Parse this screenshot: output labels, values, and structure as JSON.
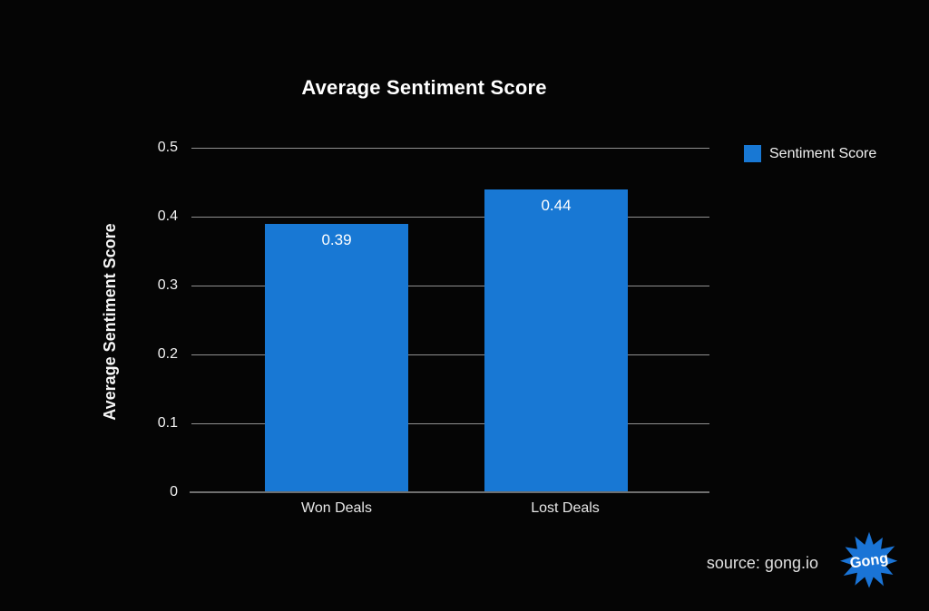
{
  "chart": {
    "title": "Average Sentiment Score",
    "y_axis_title": "Average Sentiment Score",
    "legend": {
      "label": "Sentiment Score"
    },
    "source_text": "source: gong.io",
    "logo_text": "Gong",
    "colors": {
      "bar": "#1878d4",
      "legend_swatch": "#1878d4",
      "gridline": "#909090",
      "axis_line": "#6f6f6f",
      "logo_fill": "#1a74d6",
      "background": "#050505"
    }
  },
  "chart_data": {
    "type": "bar",
    "title": "Average Sentiment Score",
    "categories": [
      "Won Deals",
      "Lost Deals"
    ],
    "series": [
      {
        "name": "Sentiment Score",
        "values": [
          0.39,
          0.44
        ]
      }
    ],
    "value_labels": [
      "0.39",
      "0.44"
    ],
    "xlabel": "",
    "ylabel": "Average Sentiment Score",
    "ylim": [
      0,
      0.5
    ],
    "yticks": [
      0,
      0.1,
      0.2,
      0.3,
      0.4,
      0.5
    ],
    "ytick_labels": [
      "0",
      "0.1",
      "0.2",
      "0.3",
      "0.4",
      "0.5"
    ],
    "grid": true,
    "legend_position": "upper right",
    "background": "dark"
  }
}
